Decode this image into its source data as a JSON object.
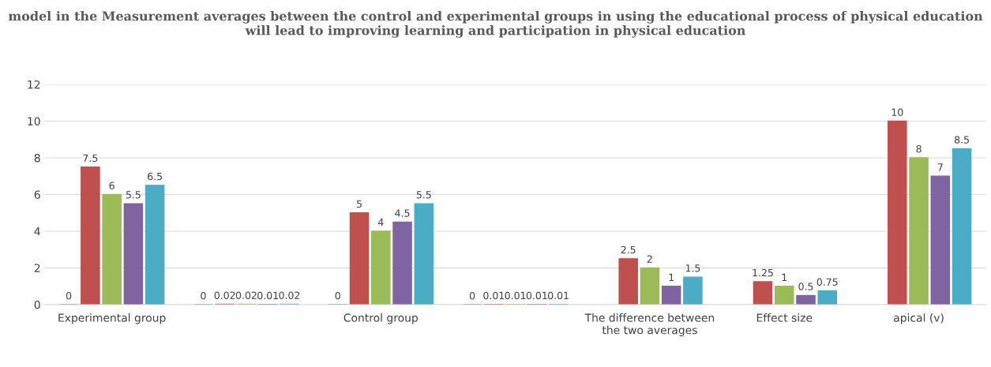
{
  "chart_data": {
    "type": "bar",
    "title": "model in the Measurement averages between the control and experimental groups in using the educational process of physical education will lead to improving learning and participation in physical education",
    "categories": [
      "Experimental group",
      null,
      "Control group",
      null,
      "The difference between\nthe two averages",
      "Effect size",
      "apical (v)"
    ],
    "series": [
      {
        "color": "#4f81bd",
        "values": [
          0,
          0,
          0,
          0,
          null,
          null,
          null
        ]
      },
      {
        "color": "#c0504d",
        "values": [
          7.5,
          0.02,
          5,
          0.01,
          2.5,
          1.25,
          10
        ]
      },
      {
        "color": "#9bbb59",
        "values": [
          6,
          0.02,
          4,
          0.01,
          2,
          1,
          8
        ]
      },
      {
        "color": "#8064a2",
        "values": [
          5.5,
          0.01,
          4.5,
          0.01,
          1,
          0.5,
          7
        ]
      },
      {
        "color": "#4bacc6",
        "values": [
          6.5,
          0.02,
          5.5,
          0.01,
          1.5,
          0.75,
          8.5
        ]
      }
    ],
    "ylim": [
      0,
      12
    ],
    "yticks": [
      0,
      2,
      4,
      6,
      8,
      10,
      12
    ],
    "grid": "y",
    "data_labels": true,
    "legend": false
  }
}
